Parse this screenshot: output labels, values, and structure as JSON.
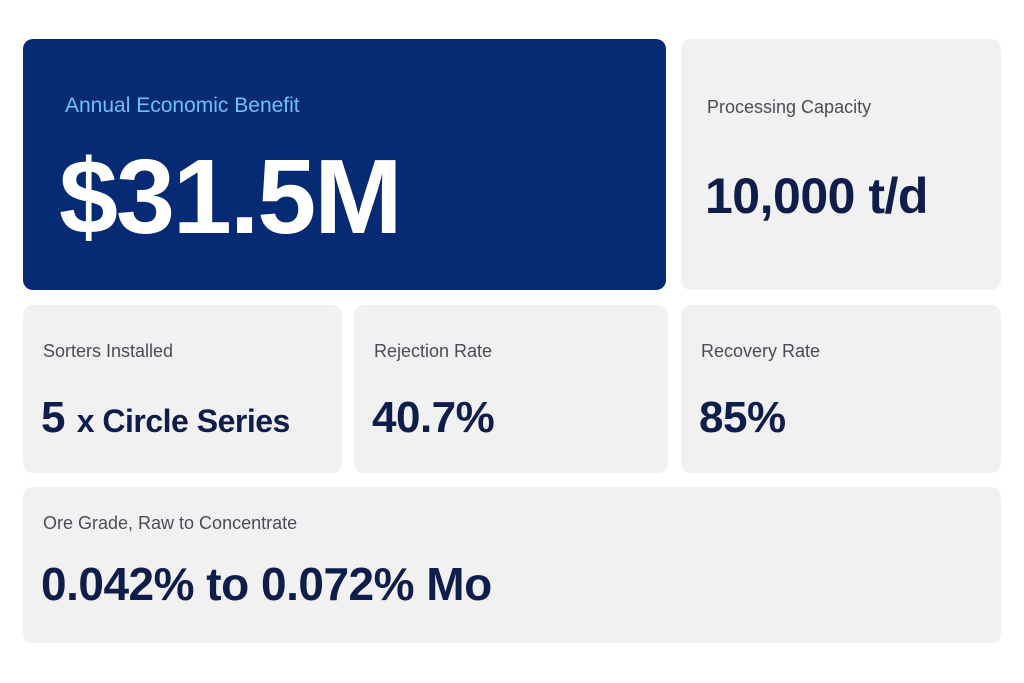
{
  "hero": {
    "label": "Annual Economic Benefit",
    "value": "$31.5M"
  },
  "capacity": {
    "label": "Processing Capacity",
    "value": "10,000 t/d"
  },
  "sorters": {
    "label": "Sorters Installed",
    "value_count": "5 ",
    "value_rest": "x Circle Series"
  },
  "rejection": {
    "label": "Rejection Rate",
    "value": "40.7%"
  },
  "recovery": {
    "label": "Recovery Rate",
    "value": "85%"
  },
  "ore": {
    "label": "Ore Grade, Raw to Concentrate",
    "value": "0.042% to 0.072% Mo"
  },
  "colors": {
    "hero_background": "#062a74",
    "hero_label": "#6cc1f5",
    "card_background": "#f1f1f2",
    "value_text": "#0f1d4a"
  }
}
